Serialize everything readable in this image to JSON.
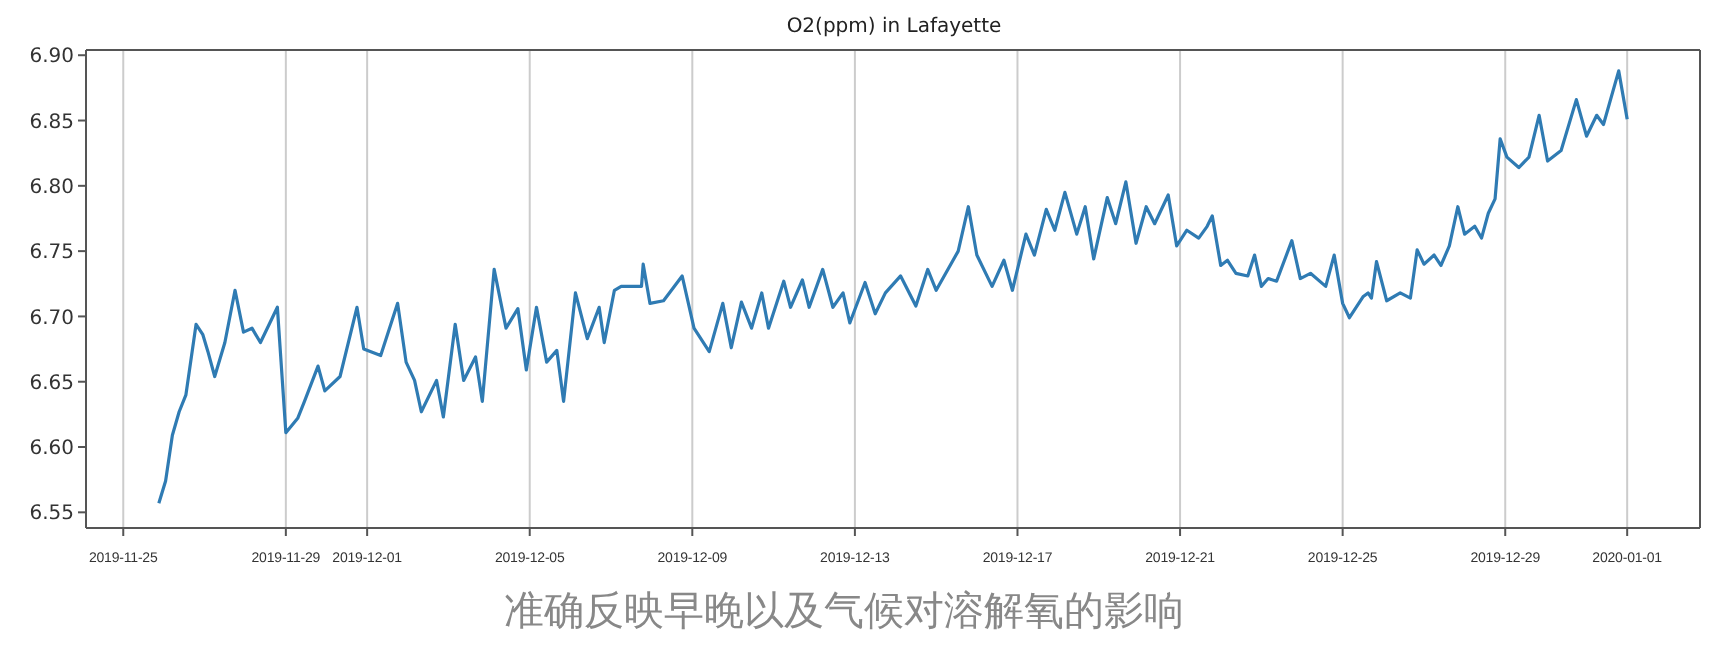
{
  "chart_data": {
    "type": "line",
    "title": "O2(ppm) in Lafayette",
    "x": [
      "2019-11-25T21:00",
      "2019-11-26T01:00",
      "2019-11-26T05:00",
      "2019-11-26T09:00",
      "2019-11-26T13:00",
      "2019-11-26T19:00",
      "2019-11-26T23:00",
      "2019-11-27T02:00",
      "2019-11-27T06:00",
      "2019-11-27T12:00",
      "2019-11-27T18:00",
      "2019-11-27T23:00",
      "2019-11-28T04:00",
      "2019-11-28T09:00",
      "2019-11-28T19:00",
      "2019-11-29T00:00",
      "2019-11-29T07:00",
      "2019-11-29T11:00",
      "2019-11-29T19:00",
      "2019-11-29T23:00",
      "2019-11-30T08:00",
      "2019-11-30T18:00",
      "2019-11-30T22:00",
      "2019-12-01T08:00",
      "2019-12-01T18:00",
      "2019-12-01T23:00",
      "2019-12-02T04:00",
      "2019-12-02T08:00",
      "2019-12-02T17:00",
      "2019-12-02T21:00",
      "2019-12-03T04:00",
      "2019-12-03T09:00",
      "2019-12-03T16:00",
      "2019-12-03T20:00",
      "2019-12-04T03:00",
      "2019-12-04T10:00",
      "2019-12-04T17:00",
      "2019-12-04T22:00",
      "2019-12-05T04:00",
      "2019-12-05T10:00",
      "2019-12-05T16:00",
      "2019-12-05T20:00",
      "2019-12-06T03:00",
      "2019-12-06T10:00",
      "2019-12-06T17:00",
      "2019-12-06T20:00",
      "2019-12-07T02:00",
      "2019-12-07T06:00",
      "2019-12-07T18:00",
      "2019-12-07T19:00",
      "2019-12-07T23:00",
      "2019-12-08T07:00",
      "2019-12-08T18:00",
      "2019-12-09T01:00",
      "2019-12-09T10:00",
      "2019-12-09T18:00",
      "2019-12-09T23:00",
      "2019-12-10T05:00",
      "2019-12-10T11:00",
      "2019-12-10T17:00",
      "2019-12-10T21:00",
      "2019-12-11T06:00",
      "2019-12-11T10:00",
      "2019-12-11T17:00",
      "2019-12-11T21:00",
      "2019-12-12T05:00",
      "2019-12-12T11:00",
      "2019-12-12T17:00",
      "2019-12-12T21:00",
      "2019-12-13T06:00",
      "2019-12-13T12:00",
      "2019-12-13T18:00",
      "2019-12-14T03:00",
      "2019-12-14T12:00",
      "2019-12-14T19:00",
      "2019-12-15T00:00",
      "2019-12-15T13:00",
      "2019-12-15T19:00",
      "2019-12-16T00:00",
      "2019-12-16T09:00",
      "2019-12-16T16:00",
      "2019-12-16T21:00",
      "2019-12-17T05:00",
      "2019-12-17T10:00",
      "2019-12-17T17:00",
      "2019-12-17T22:00",
      "2019-12-18T04:00",
      "2019-12-18T11:00",
      "2019-12-18T16:00",
      "2019-12-18T21:00",
      "2019-12-19T05:00",
      "2019-12-19T10:00",
      "2019-12-19T16:00",
      "2019-12-19T22:00",
      "2019-12-20T04:00",
      "2019-12-20T09:00",
      "2019-12-20T17:00",
      "2019-12-20T22:00",
      "2019-12-21T04:00",
      "2019-12-21T11:00",
      "2019-12-21T16:00",
      "2019-12-21T19:00",
      "2019-12-22T00:00",
      "2019-12-22T04:00",
      "2019-12-22T09:00",
      "2019-12-22T16:00",
      "2019-12-22T20:00",
      "2019-12-23T00:00",
      "2019-12-23T04:00",
      "2019-12-23T09:00",
      "2019-12-23T18:00",
      "2019-12-23T23:00",
      "2019-12-24T05:00",
      "2019-12-24T14:00",
      "2019-12-24T19:00",
      "2019-12-25T00:00",
      "2019-12-25T04:00",
      "2019-12-25T12:00",
      "2019-12-25T15:00",
      "2019-12-25T17:00",
      "2019-12-25T20:00",
      "2019-12-26T02:00",
      "2019-12-26T10:00",
      "2019-12-26T16:00",
      "2019-12-26T20:00",
      "2019-12-27T00:00",
      "2019-12-27T06:00",
      "2019-12-27T10:00",
      "2019-12-27T15:00",
      "2019-12-27T20:00",
      "2019-12-28T00:00",
      "2019-12-28T06:00",
      "2019-12-28T10:00",
      "2019-12-28T14:00",
      "2019-12-28T18:00",
      "2019-12-28T21:00",
      "2019-12-29T01:00",
      "2019-12-29T08:00",
      "2019-12-29T14:00",
      "2019-12-29T20:00",
      "2019-12-30T01:00",
      "2019-12-30T09:00",
      "2019-12-30T18:00",
      "2019-12-31T00:00",
      "2019-12-31T06:00",
      "2019-12-31T10:00",
      "2019-12-31T19:00",
      "2020-01-01T00:00"
    ],
    "series": [
      {
        "color": "#2f7bb3",
        "values": [
          6.557,
          6.574,
          6.609,
          6.627,
          6.64,
          6.694,
          6.686,
          6.673,
          6.654,
          6.68,
          6.72,
          6.688,
          6.691,
          6.68,
          6.707,
          6.611,
          6.622,
          6.635,
          6.662,
          6.643,
          6.654,
          6.707,
          6.675,
          6.67,
          6.71,
          6.665,
          6.651,
          6.627,
          6.651,
          6.623,
          6.694,
          6.651,
          6.669,
          6.635,
          6.736,
          6.691,
          6.706,
          6.659,
          6.707,
          6.665,
          6.674,
          6.635,
          6.718,
          6.683,
          6.707,
          6.68,
          6.72,
          6.723,
          6.723,
          6.74,
          6.71,
          6.712,
          6.731,
          6.691,
          6.673,
          6.71,
          6.676,
          6.711,
          6.691,
          6.718,
          6.691,
          6.727,
          6.707,
          6.728,
          6.707,
          6.736,
          6.707,
          6.718,
          6.695,
          6.726,
          6.702,
          6.718,
          6.731,
          6.708,
          6.736,
          6.72,
          6.75,
          6.784,
          6.747,
          6.723,
          6.743,
          6.72,
          6.763,
          6.747,
          6.782,
          6.766,
          6.795,
          6.763,
          6.784,
          6.744,
          6.791,
          6.771,
          6.803,
          6.756,
          6.784,
          6.771,
          6.793,
          6.754,
          6.766,
          6.76,
          6.769,
          6.777,
          6.739,
          6.743,
          6.733,
          6.731,
          6.747,
          6.723,
          6.729,
          6.727,
          6.758,
          6.729,
          6.733,
          6.723,
          6.747,
          6.71,
          6.699,
          6.715,
          6.718,
          6.714,
          6.742,
          6.712,
          6.718,
          6.714,
          6.751,
          6.74,
          6.747,
          6.739,
          6.754,
          6.784,
          6.763,
          6.769,
          6.76,
          6.779,
          6.79,
          6.836,
          6.822,
          6.814,
          6.822,
          6.854,
          6.819,
          6.827,
          6.866,
          6.838,
          6.854,
          6.847,
          6.888,
          6.851
        ]
      }
    ],
    "xlim": [
      "2019-11-24T02:00",
      "2020-01-02T19:00"
    ],
    "xticks": [
      "2019-11-25",
      "2019-11-29",
      "2019-12-01",
      "2019-12-05",
      "2019-12-09",
      "2019-12-13",
      "2019-12-17",
      "2019-12-21",
      "2019-12-25",
      "2019-12-29",
      "2020-01-01"
    ],
    "ylim": [
      6.538,
      6.904
    ],
    "yticks": [
      6.55,
      {
        "value": 6.6,
        "label": "6.60"
      },
      6.65,
      {
        "value": 6.7,
        "label": "6.70"
      },
      6.75,
      {
        "value": 6.8,
        "label": "6.80"
      },
      6.85,
      {
        "value": 6.9,
        "label": "6.90"
      }
    ],
    "grid": "x",
    "annotations": [
      "准确反映早晚以及气候对溶解氧的影响"
    ]
  }
}
